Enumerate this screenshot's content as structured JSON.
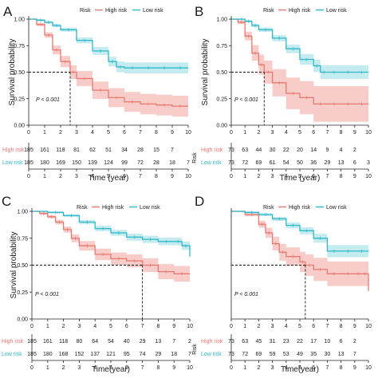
{
  "legend": {
    "title": "Risk",
    "items": [
      "High risk",
      "Low risk"
    ]
  },
  "colors": {
    "high": "#e87970",
    "low": "#2fb8c6",
    "high_band": "#f5b8b2",
    "low_band": "#a9e2ea",
    "axis": "#222222"
  },
  "pvalue_text": "P < 0.001",
  "xlabel_ab": "Time (year)",
  "xlabel_cd": "Time(year)",
  "ylabel": "Survival probability",
  "table_row_labels": [
    "High risk",
    "Low risk"
  ],
  "table_side_label": "Risk",
  "chart_data": [
    {
      "panel": "A",
      "type": "line",
      "xlabel": "Time (year)",
      "ylabel": "Survival probability",
      "xlim": [
        0,
        10
      ],
      "ylim": [
        0,
        1
      ],
      "xticks": [
        0,
        1,
        2,
        3,
        4,
        5,
        6,
        7,
        8,
        9,
        10
      ],
      "yticks": [
        "0.00",
        "0.25",
        "0.50",
        "0.75",
        "1.00"
      ],
      "median_survival": 2.6,
      "pvalue": "P < 0.001",
      "series": [
        {
          "name": "High risk",
          "x": [
            0,
            0.5,
            1,
            1.5,
            2,
            2.6,
            3,
            4,
            5,
            6,
            7,
            8,
            9,
            10
          ],
          "y": [
            1,
            0.95,
            0.85,
            0.71,
            0.6,
            0.5,
            0.44,
            0.33,
            0.26,
            0.22,
            0.2,
            0.19,
            0.18,
            0.18
          ]
        },
        {
          "name": "Low risk",
          "x": [
            0,
            0.5,
            1,
            1.5,
            2,
            3,
            4,
            5,
            5.5,
            6,
            7,
            8,
            9,
            10
          ],
          "y": [
            1,
            0.99,
            0.97,
            0.94,
            0.9,
            0.8,
            0.7,
            0.6,
            0.55,
            0.54,
            0.54,
            0.54,
            0.54,
            0.54
          ]
        }
      ],
      "risk_table": {
        "times": [
          0,
          1,
          2,
          3,
          4,
          5,
          6,
          7,
          8,
          9,
          10
        ],
        "High risk": [
          185,
          161,
          118,
          81,
          62,
          51,
          34,
          28,
          15,
          7,
          ""
        ],
        "Low risk": [
          185,
          180,
          169,
          150,
          139,
          124,
          99,
          72,
          28,
          18,
          7
        ]
      }
    },
    {
      "panel": "B",
      "type": "line",
      "xlabel": "Time (year)",
      "ylabel": "Survival probability",
      "xlim": [
        0,
        10
      ],
      "ylim": [
        0,
        1
      ],
      "xticks": [
        0,
        1,
        2,
        3,
        4,
        5,
        6,
        7,
        8,
        9,
        10
      ],
      "yticks": [
        "0.00",
        "0.25",
        "0.50",
        "0.75",
        "1.00"
      ],
      "median_survival": 2.4,
      "pvalue": "P < 0.001",
      "series": [
        {
          "name": "High risk",
          "x": [
            0,
            0.5,
            1,
            1.5,
            2,
            2.4,
            3,
            4,
            5,
            6,
            7,
            8,
            9,
            10
          ],
          "y": [
            1,
            0.97,
            0.84,
            0.68,
            0.57,
            0.5,
            0.4,
            0.3,
            0.26,
            0.2,
            0.2,
            0.2,
            0.2,
            0.2
          ]
        },
        {
          "name": "Low risk",
          "x": [
            0,
            0.5,
            1,
            1.5,
            2,
            3,
            4,
            5,
            6,
            6.5,
            7,
            8,
            9,
            10
          ],
          "y": [
            1,
            1,
            0.98,
            0.94,
            0.9,
            0.82,
            0.72,
            0.62,
            0.56,
            0.5,
            0.5,
            0.5,
            0.5,
            0.5
          ]
        }
      ],
      "risk_table": {
        "times": [
          0,
          1,
          2,
          3,
          4,
          5,
          6,
          7,
          8,
          9,
          10
        ],
        "High risk": [
          73,
          63,
          44,
          30,
          22,
          20,
          14,
          9,
          4,
          2,
          ""
        ],
        "Low risk": [
          73,
          72,
          69,
          61,
          54,
          50,
          36,
          29,
          13,
          6,
          3
        ]
      }
    },
    {
      "panel": "C",
      "type": "line",
      "xlabel": "Time(year)",
      "ylabel": "Survival probability",
      "xlim": [
        0,
        10
      ],
      "ylim": [
        0,
        1
      ],
      "xticks": [
        0,
        1,
        2,
        3,
        4,
        5,
        6,
        7,
        8,
        9,
        10
      ],
      "yticks": [
        "0.00",
        "0.25",
        "0.50",
        "0.75",
        "1.00"
      ],
      "median_survival": 7,
      "pvalue": "P < 0.001",
      "series": [
        {
          "name": "High risk",
          "x": [
            0,
            0.5,
            1,
            1.5,
            2,
            2.5,
            3,
            4,
            5,
            6,
            7,
            8,
            9,
            10
          ],
          "y": [
            1,
            0.98,
            0.95,
            0.9,
            0.83,
            0.75,
            0.68,
            0.6,
            0.56,
            0.54,
            0.5,
            0.44,
            0.42,
            0.42
          ]
        },
        {
          "name": "Low risk",
          "x": [
            0,
            1,
            2,
            3,
            4,
            5,
            6,
            7,
            8,
            9,
            9.5,
            10
          ],
          "y": [
            1,
            0.99,
            0.96,
            0.9,
            0.84,
            0.8,
            0.76,
            0.74,
            0.72,
            0.72,
            0.68,
            0.58
          ]
        }
      ],
      "risk_table": {
        "times": [
          0,
          1,
          2,
          3,
          4,
          5,
          6,
          7,
          8,
          9,
          10
        ],
        "High risk": [
          185,
          161,
          118,
          80,
          64,
          54,
          40,
          29,
          13,
          7,
          2
        ],
        "Low risk": [
          185,
          180,
          168,
          152,
          137,
          121,
          95,
          74,
          29,
          18,
          7
        ]
      }
    },
    {
      "panel": "D",
      "type": "line",
      "xlabel": "Time(year)",
      "ylabel": "",
      "xlim": [
        0,
        10
      ],
      "ylim": [
        0,
        1
      ],
      "xticks": [
        0,
        1,
        2,
        3,
        4,
        5,
        6,
        7,
        8,
        9,
        10
      ],
      "yticks": [],
      "median_survival": 5.4,
      "pvalue": "P < 0.001",
      "series": [
        {
          "name": "High risk",
          "x": [
            0,
            1,
            2,
            2.5,
            3,
            3.5,
            4,
            5,
            5.4,
            6,
            7,
            8,
            9,
            9.5,
            10
          ],
          "y": [
            1,
            0.97,
            0.88,
            0.8,
            0.7,
            0.62,
            0.58,
            0.53,
            0.5,
            0.46,
            0.42,
            0.42,
            0.42,
            0.42,
            0.26
          ]
        },
        {
          "name": "Low risk",
          "x": [
            0,
            1,
            2,
            3,
            4,
            5,
            6,
            7,
            8,
            9,
            10
          ],
          "y": [
            1,
            0.99,
            0.97,
            0.93,
            0.87,
            0.82,
            0.75,
            0.63,
            0.63,
            0.63,
            0.63
          ]
        }
      ],
      "risk_table": {
        "times": [
          0,
          1,
          2,
          3,
          4,
          5,
          6,
          7,
          8,
          9,
          10
        ],
        "High risk": [
          73,
          63,
          45,
          31,
          23,
          22,
          17,
          10,
          6,
          2,
          ""
        ],
        "Low risk": [
          73,
          72,
          69,
          59,
          53,
          49,
          35,
          30,
          13,
          7,
          ""
        ]
      }
    }
  ]
}
